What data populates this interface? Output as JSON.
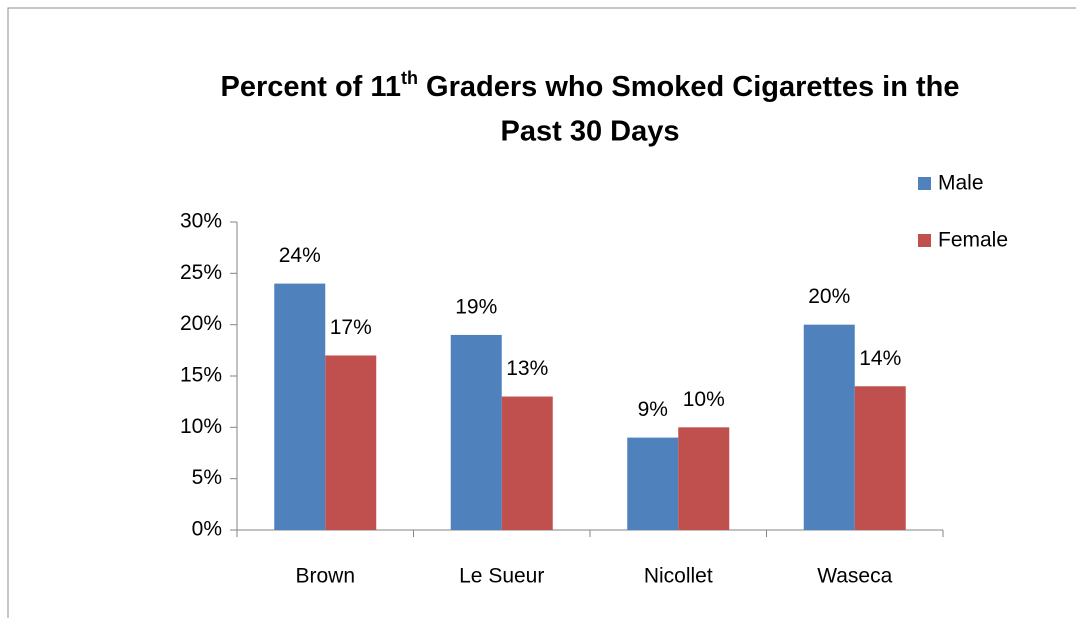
{
  "chart_data": {
    "type": "bar",
    "title": {
      "line1": [
        "Percent of 11",
        "th",
        "Graders who Smoked Cigarettes in the"
      ],
      "line2": "Past 30 Days"
    },
    "categories": [
      "Brown",
      "Le Sueur",
      "Nicollet",
      "Waseca"
    ],
    "series": [
      {
        "name": "Male",
        "color": "#4f81bd",
        "values": [
          24,
          19,
          9,
          20
        ],
        "value_labels": [
          "24%",
          "19%",
          "9%",
          "20%"
        ]
      },
      {
        "name": "Female",
        "color": "#c0504d",
        "values": [
          17,
          13,
          10,
          14
        ],
        "value_labels": [
          "17%",
          "13%",
          "10%",
          "14%"
        ]
      }
    ],
    "ylim": [
      0,
      30
    ],
    "yticks": [
      {
        "value": 0,
        "label": "0%"
      },
      {
        "value": 5,
        "label": "5%"
      },
      {
        "value": 10,
        "label": "10%"
      },
      {
        "value": 15,
        "label": "15%"
      },
      {
        "value": 20,
        "label": "20%"
      },
      {
        "value": 25,
        "label": "25%"
      },
      {
        "value": 30,
        "label": "30%"
      }
    ],
    "legend": "top-right",
    "grid": false
  }
}
